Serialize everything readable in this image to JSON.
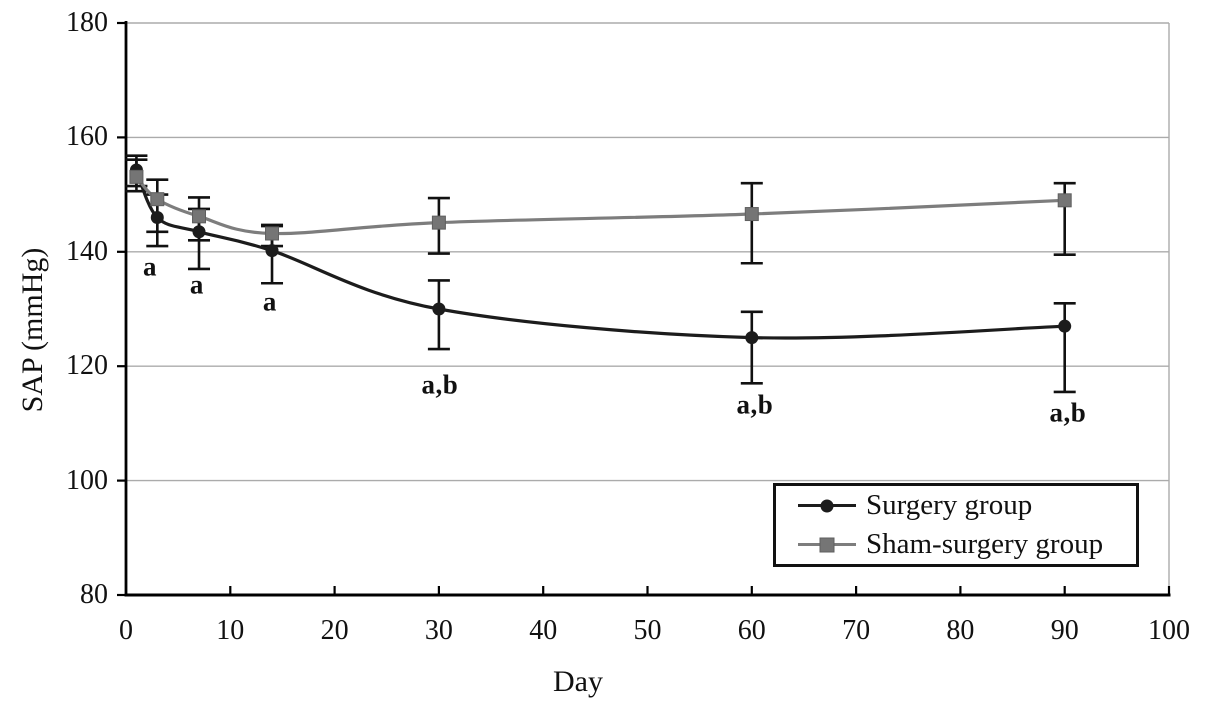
{
  "figure": {
    "description": "Line chart of systolic arterial pressure (SAP) over time for surgery vs sham-surgery groups, with error bars and significance annotations"
  },
  "chart_data": {
    "type": "line",
    "title": "",
    "xlabel": "Day",
    "ylabel": "SAP (mmHg)",
    "xlim": [
      0,
      100
    ],
    "ylim": [
      80,
      180
    ],
    "x_ticks": [
      0,
      10,
      20,
      30,
      40,
      50,
      60,
      70,
      80,
      90,
      100
    ],
    "y_ticks": [
      80,
      100,
      120,
      140,
      160,
      180
    ],
    "grid": "horizontal-only",
    "legend_position": "inside-bottom-right",
    "x": [
      1,
      3,
      7,
      14,
      30,
      60,
      90
    ],
    "series": [
      {
        "name": "Surgery group",
        "marker": "circle",
        "color": "#1c1c1c",
        "values": [
          154.3,
          146.0,
          143.5,
          140.2,
          130.0,
          125.0,
          127.0
        ],
        "error_low": [
          151.5,
          141.0,
          137.0,
          134.5,
          123.0,
          117.0,
          115.5
        ],
        "error_high": [
          156.8,
          150.0,
          147.5,
          144.5,
          135.0,
          129.5,
          131.0
        ]
      },
      {
        "name": "Sham-surgery group",
        "marker": "square",
        "color": "#7d7d7d",
        "values": [
          153.1,
          149.2,
          146.2,
          143.2,
          145.1,
          146.6,
          149.0
        ],
        "error_low": [
          150.6,
          143.5,
          142.0,
          141.0,
          139.7,
          138.0,
          139.5
        ],
        "error_high": [
          156.1,
          152.6,
          149.5,
          144.7,
          149.4,
          152.0,
          152.0
        ]
      }
    ],
    "annotations": [
      {
        "text": "a",
        "day": 2.3,
        "value": 137.3
      },
      {
        "text": "a",
        "day": 6.8,
        "value": 134.2
      },
      {
        "text": "a",
        "day": 13.8,
        "value": 131.2
      },
      {
        "text": "a,b",
        "day": 30.1,
        "value": 116.7
      },
      {
        "text": "a,b",
        "day": 60.3,
        "value": 113.2
      },
      {
        "text": "a,b",
        "day": 90.3,
        "value": 111.8
      }
    ],
    "colors": {
      "axis": "#000000",
      "grid": "#ababab",
      "error_bar": "#111111",
      "background": "#ffffff"
    }
  }
}
